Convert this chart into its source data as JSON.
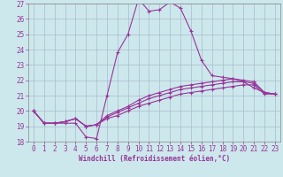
{
  "xlabel": "Windchill (Refroidissement éolien,°C)",
  "bg_color": "#cce8ec",
  "line_color": "#993399",
  "grid_color": "#aabbcc",
  "xlim": [
    -0.5,
    23.5
  ],
  "ylim": [
    18,
    27
  ],
  "yticks": [
    18,
    19,
    20,
    21,
    22,
    23,
    24,
    25,
    26,
    27
  ],
  "xticks": [
    0,
    1,
    2,
    3,
    4,
    5,
    6,
    7,
    8,
    9,
    10,
    11,
    12,
    13,
    14,
    15,
    16,
    17,
    18,
    19,
    20,
    21,
    22,
    23
  ],
  "curves": [
    [
      20.0,
      19.2,
      19.2,
      19.2,
      19.2,
      18.3,
      18.2,
      21.0,
      23.8,
      25.0,
      27.3,
      26.5,
      26.6,
      27.1,
      26.7,
      25.2,
      23.3,
      22.3,
      22.2,
      22.1,
      21.9,
      21.5,
      21.2,
      21.1
    ],
    [
      20.0,
      19.2,
      19.2,
      19.3,
      19.5,
      19.0,
      19.1,
      19.5,
      19.7,
      20.0,
      20.3,
      20.5,
      20.7,
      20.9,
      21.1,
      21.2,
      21.3,
      21.4,
      21.5,
      21.6,
      21.7,
      21.7,
      21.1,
      21.1
    ],
    [
      20.0,
      19.2,
      19.2,
      19.3,
      19.5,
      19.0,
      19.1,
      19.7,
      20.0,
      20.3,
      20.7,
      21.0,
      21.2,
      21.4,
      21.6,
      21.7,
      21.8,
      21.9,
      22.0,
      22.1,
      22.0,
      21.9,
      21.2,
      21.1
    ],
    [
      20.0,
      19.2,
      19.2,
      19.3,
      19.5,
      19.0,
      19.1,
      19.6,
      19.9,
      20.2,
      20.5,
      20.8,
      21.0,
      21.2,
      21.4,
      21.5,
      21.6,
      21.7,
      21.8,
      21.9,
      21.9,
      21.8,
      21.2,
      21.1
    ]
  ],
  "tick_fontsize": 5.5,
  "xlabel_fontsize": 5.5
}
